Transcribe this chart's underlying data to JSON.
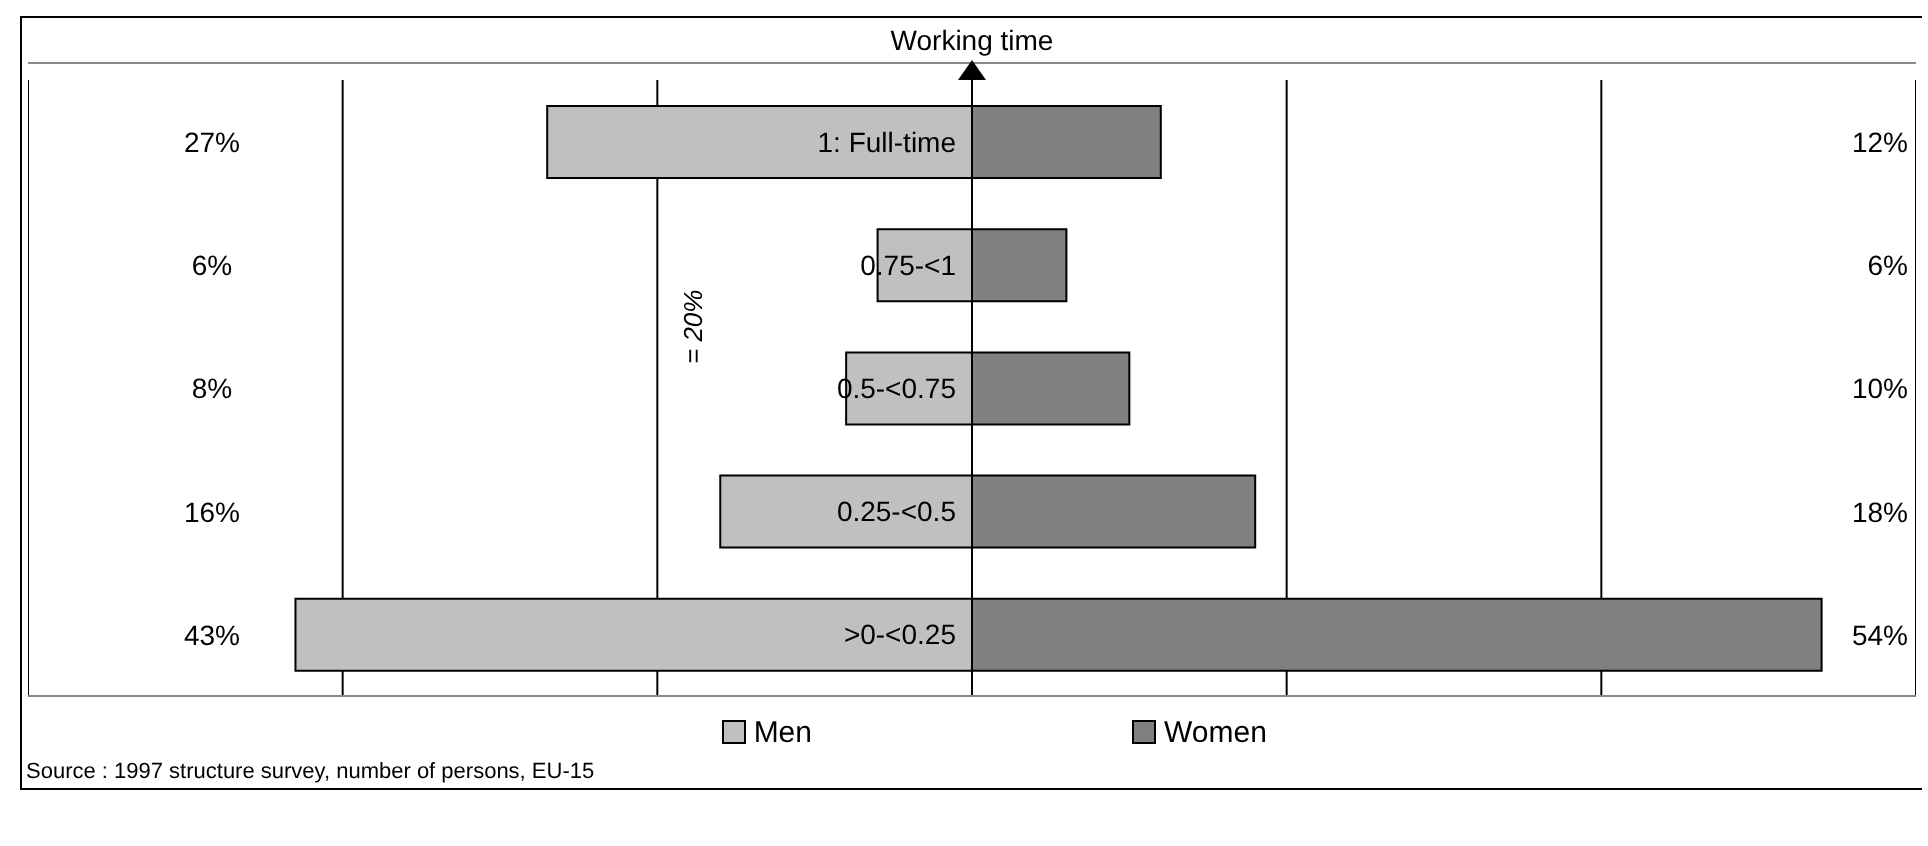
{
  "chart_data": [
    {
      "type": "bar",
      "orientation": "horizontal",
      "title": "Working time",
      "tick_labels": "y",
      "categories": [
        "1: Full-time",
        "0.75-<1",
        "0.5-<0.75",
        "0.25-<0.5",
        ">0-<0.25"
      ],
      "series": [
        {
          "name": "Men",
          "color": "#c0c0c0",
          "values": [
            27,
            6,
            8,
            16,
            43
          ],
          "value_labels": [
            "27%",
            "6%",
            "8%",
            "16%",
            "43%"
          ]
        }
      ],
      "xlim": [
        60,
        0
      ],
      "xticks": [
        {
          "value": 40,
          "label": null
        },
        {
          "value": 20,
          "label": null
        },
        {
          "value": 0,
          "label": null
        }
      ],
      "grid": "x",
      "legend": "bottom",
      "annotations": [
        "= 20%",
        "Source : 1997 structure survey, number of persons, EU-15"
      ]
    },
    {
      "type": "bar",
      "orientation": "horizontal",
      "tick_labels": false,
      "categories": [
        null,
        null,
        null,
        null,
        null
      ],
      "series": [
        {
          "name": "Women",
          "color": "#808080",
          "values": [
            12,
            6,
            10,
            18,
            54
          ],
          "value_labels": [
            "12%",
            "6%",
            "10%",
            "18%",
            "54%"
          ]
        }
      ],
      "xlim": [
        0,
        60
      ],
      "xticks": [
        {
          "value": 0,
          "label": null
        },
        {
          "value": 20,
          "label": null
        },
        {
          "value": 40,
          "label": null
        }
      ],
      "grid": "x",
      "legend": "bottom"
    }
  ]
}
